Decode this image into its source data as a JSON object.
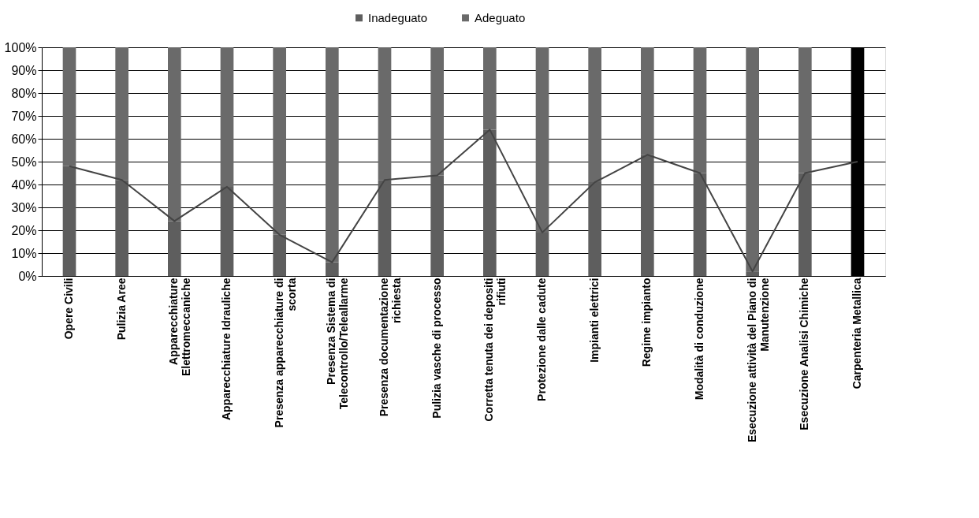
{
  "chart_data": {
    "type": "bar",
    "stacked": true,
    "legend": "top",
    "grid": "y",
    "categories": [
      "Opere Civili",
      "Pulizia Aree",
      "Apparecchiature Elettromeccaniche",
      "Apparecchiature Idrauliche",
      "Presenza apparecchiature di scorta",
      "Presenza Sistema di Telecontrollo/Teleallarme",
      "Presenza documentazione richiesta",
      "Pulizia vasche di processo",
      "Corretta tenuta dei depositi rifiuti",
      "Protezione dalle cadute",
      "Impianti elettrici",
      "Regime impianto",
      "Modalità di conduzione",
      "Esecuzione attività del Piano di Manutenzione",
      "Esecuzione Analisi Chimiche",
      "Carpenteria Metallica"
    ],
    "series": [
      {
        "name": "Inadeguato",
        "color": "#5e5e5e",
        "colors": [
          "#5e5e5e",
          "#5e5e5e",
          "#5e5e5e",
          "#5e5e5e",
          "#5e5e5e",
          "#5e5e5e",
          "#5e5e5e",
          "#5e5e5e",
          "#5e5e5e",
          "#5e5e5e",
          "#5e5e5e",
          "#5e5e5e",
          "#5e5e5e",
          "#5e5e5e",
          "#5e5e5e",
          "#000000"
        ],
        "values": [
          48,
          42,
          24,
          39,
          18,
          6,
          42,
          44,
          64,
          19,
          41,
          53,
          45,
          2,
          45,
          50
        ]
      },
      {
        "name": "Adeguato",
        "color": "#6a6a6a",
        "colors": [
          "#6a6a6a",
          "#6a6a6a",
          "#6a6a6a",
          "#6a6a6a",
          "#6a6a6a",
          "#6a6a6a",
          "#6a6a6a",
          "#6a6a6a",
          "#6a6a6a",
          "#6a6a6a",
          "#6a6a6a",
          "#6a6a6a",
          "#6a6a6a",
          "#6a6a6a",
          "#6a6a6a",
          "#000000"
        ],
        "values": [
          52,
          58,
          76,
          61,
          82,
          94,
          58,
          56,
          36,
          81,
          59,
          47,
          55,
          98,
          55,
          50
        ]
      },
      {
        "type": "line",
        "color": "#444444",
        "values": [
          48,
          42,
          24,
          39,
          18,
          6,
          42,
          44,
          64,
          19,
          41,
          53,
          45,
          2,
          45,
          50
        ]
      }
    ],
    "ylim": [
      0,
      100
    ],
    "yticks": [
      {
        "value": 0,
        "label": "0%"
      },
      {
        "value": 10,
        "label": "10%"
      },
      {
        "value": 20,
        "label": "20%"
      },
      {
        "value": 30,
        "label": "30%"
      },
      {
        "value": 40,
        "label": "40%"
      },
      {
        "value": 50,
        "label": "50%"
      },
      {
        "value": 60,
        "label": "60%"
      },
      {
        "value": 70,
        "label": "70%"
      },
      {
        "value": 80,
        "label": "80%"
      },
      {
        "value": 90,
        "label": "90%"
      },
      {
        "value": 100,
        "label": "100%"
      }
    ]
  }
}
